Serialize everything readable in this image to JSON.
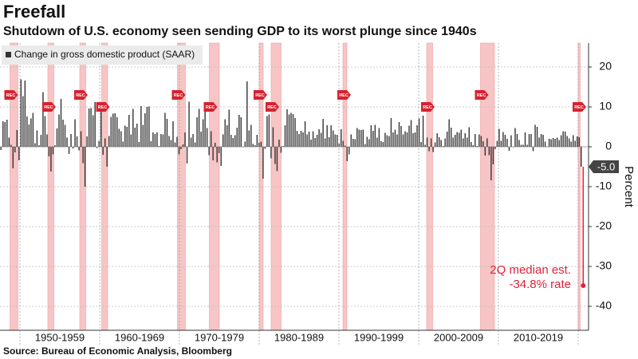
{
  "chart_data": {
    "type": "bar",
    "title": "Freefall",
    "subtitle": "Shutdown of U.S. economy seen sending GDP to its worst plunge since 1940s",
    "legend_label": "Change in gross domestic product (SAAR)",
    "y_axis_label": "Percent",
    "source": "Source: Bureau of Economic Analysis, Bloomberg",
    "color": "#333333",
    "xlim": [
      1947.5,
      2020.75
    ],
    "xticks": [
      1950,
      1960,
      1970,
      1980,
      1990,
      2000,
      2010,
      2020
    ],
    "x_labels": [
      "1950-1959",
      "1960-1969",
      "1970-1979",
      "1980-1989",
      "1990-1999",
      "2000-2009",
      "2010-2019"
    ],
    "ylim": [
      -46,
      26
    ],
    "yticks": [
      20,
      10,
      0,
      -10,
      -20,
      -30,
      -40
    ],
    "grid": true,
    "recessions": [
      [
        1948.75,
        1949.75
      ],
      [
        1953.5,
        1954.25
      ],
      [
        1957.5,
        1958.25
      ],
      [
        1960.25,
        1961
      ],
      [
        1969.75,
        1970.75
      ],
      [
        1973.75,
        1975
      ],
      [
        1980,
        1980.5
      ],
      [
        1981.5,
        1982.75
      ],
      [
        1990.5,
        1991
      ],
      [
        2001,
        2001.75
      ],
      [
        2007.75,
        2009.5
      ],
      [
        2020,
        2020.25
      ]
    ],
    "recession_color": "#f7c5c5",
    "recession_marker": "REC",
    "values": [
      -0.8,
      6.4,
      6.2,
      6.8,
      2.3,
      0.5,
      -5.4,
      -1.4,
      4.2,
      -3.4,
      16.9,
      12.7,
      16.6,
      7.6,
      5.6,
      7.1,
      8.5,
      0.9,
      4.1,
      0.4,
      3.0,
      13.7,
      7.7,
      3.1,
      -2.4,
      -6.2,
      -1.9,
      0.4,
      4.6,
      8.1,
      12.0,
      6.8,
      5.5,
      2.3,
      -1.8,
      3.2,
      -0.4,
      6.9,
      2.6,
      -0.9,
      3.9,
      -4.1,
      -10.0,
      2.6,
      9.6,
      9.7,
      7.9,
      11.2,
      -0.3,
      1.5,
      9.3,
      -2.0,
      2.1,
      -5.0,
      2.7,
      7.5,
      8.3,
      8.4,
      7.4,
      4.5,
      3.9,
      1.3,
      5.3,
      5.0,
      8.0,
      3.1,
      9.5,
      4.8,
      5.8,
      1.2,
      10.2,
      5.5,
      8.4,
      10.0,
      10.1,
      1.4,
      3.6,
      3.2,
      3.6,
      0.2,
      3.2,
      3.1,
      8.5,
      7.0,
      2.7,
      1.7,
      6.4,
      1.1,
      2.5,
      -1.9,
      -0.6,
      0.6,
      3.6,
      -4.2,
      11.3,
      2.3,
      3.2,
      1.1,
      7.4,
      9.5,
      3.8,
      6.9,
      10.6,
      4.7,
      -2.1,
      3.9,
      -3.4,
      1.0,
      -3.9,
      -1.6,
      -4.8,
      3.1,
      6.9,
      5.4,
      9.3,
      3.0,
      2.2,
      2.9,
      4.8,
      8.0,
      7.4,
      0.0,
      1.3,
      16.4,
      4.1,
      5.5,
      0.7,
      0.4,
      3.0,
      1.0,
      1.3,
      -8.0,
      -0.5,
      7.7,
      8.1,
      -2.9,
      4.9,
      -4.3,
      -6.1,
      1.8,
      -1.5,
      0.2,
      5.4,
      9.4,
      8.1,
      8.5,
      8.2,
      7.2,
      4.0,
      3.2,
      4.0,
      3.6,
      6.4,
      3.1,
      3.8,
      1.8,
      3.9,
      2.2,
      3.0,
      4.4,
      3.5,
      7.0,
      2.1,
      5.4,
      2.4,
      5.4,
      4.1,
      3.1,
      3.0,
      0.8,
      4.4,
      1.5,
      0.3,
      -3.6,
      -1.9,
      3.1,
      2.0,
      1.9,
      4.7,
      4.3,
      4.2,
      4.3,
      0.7,
      2.5,
      1.9,
      5.4,
      4.0,
      5.5,
      2.3,
      4.7,
      1.4,
      1.2,
      3.5,
      2.9,
      2.7,
      7.2,
      3.6,
      4.3,
      3.1,
      6.2,
      5.2,
      3.1,
      3.9,
      3.6,
      5.3,
      6.7,
      3.4,
      3.6,
      5.4,
      7.1,
      1.2,
      7.8,
      0.5,
      2.3,
      -1.1,
      2.1,
      -1.3,
      1.1,
      3.4,
      2.4,
      1.7,
      0.2,
      2.1,
      3.8,
      6.9,
      4.8,
      2.3,
      3.0,
      3.7,
      3.5,
      4.3,
      2.1,
      3.4,
      2.3,
      4.9,
      1.2,
      0.4,
      3.2,
      0.2,
      3.1,
      2.7,
      1.4,
      -2.2,
      2.1,
      -2.1,
      -8.4,
      -4.4,
      -0.6,
      1.5,
      4.5,
      1.5,
      3.7,
      3.0,
      2.0,
      -1.0,
      2.9,
      -0.1,
      4.7,
      3.2,
      1.7,
      0.5,
      0.5,
      3.6,
      0.5,
      3.2,
      3.2,
      -1.1,
      5.5,
      5.0,
      2.3,
      3.2,
      3.0,
      1.3,
      0.1,
      2.0,
      1.9,
      2.2,
      2.0,
      2.3,
      1.7,
      2.9,
      3.9,
      3.8,
      2.7,
      2.1,
      1.3,
      2.9,
      1.5,
      2.6,
      2.4,
      -5.0
    ],
    "last_value_label": "-5.0",
    "estimate": {
      "value": -34.8,
      "color": "#e0223a",
      "annotation": [
        "2Q median est.",
        "-34.8% rate"
      ]
    }
  }
}
